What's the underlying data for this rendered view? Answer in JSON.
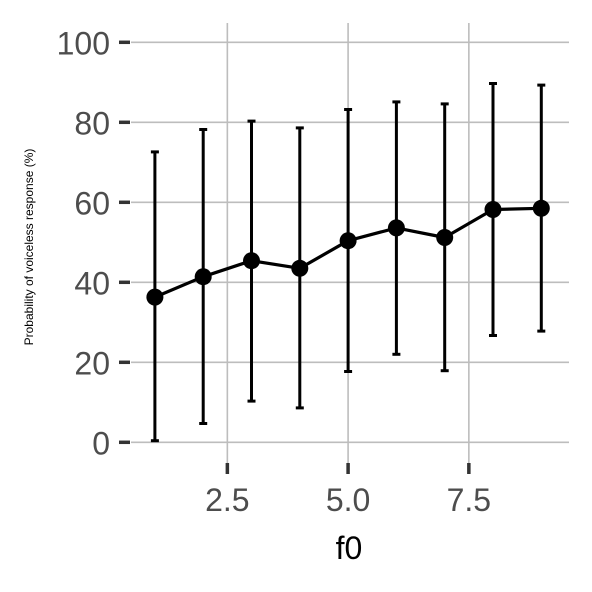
{
  "chart_data": {
    "type": "line",
    "title": "",
    "xlabel": "f0",
    "ylabel": "Probability of voiceless response (%)",
    "xlim": [
      0.5,
      9.5
    ],
    "ylim": [
      -5,
      104
    ],
    "x_ticks": [
      2.5,
      5.0,
      7.5
    ],
    "x_tick_labels": [
      "2.5",
      "5.0",
      "7.5"
    ],
    "y_ticks": [
      0,
      20,
      40,
      60,
      80,
      100
    ],
    "y_tick_labels": [
      "0",
      "20",
      "40",
      "60",
      "80",
      "100"
    ],
    "grid": true,
    "legend": "none",
    "series": [
      {
        "x": [
          1,
          2,
          3,
          4,
          5,
          6,
          7,
          8,
          9
        ],
        "y": [
          36.3,
          41.4,
          45.4,
          43.5,
          50.4,
          53.6,
          51.2,
          58.2,
          58.5
        ],
        "error_low": [
          0.4,
          4.7,
          10.3,
          8.6,
          17.7,
          22.0,
          17.9,
          26.7,
          27.8
        ],
        "error_high": [
          72.6,
          78.2,
          80.3,
          78.6,
          83.2,
          85.1,
          84.6,
          89.7,
          89.3
        ],
        "color": "#000000"
      }
    ]
  },
  "colors": {
    "grid": "#bdbdbd",
    "tick_mark": "#333333",
    "tick_label": "#4d4d4d"
  }
}
